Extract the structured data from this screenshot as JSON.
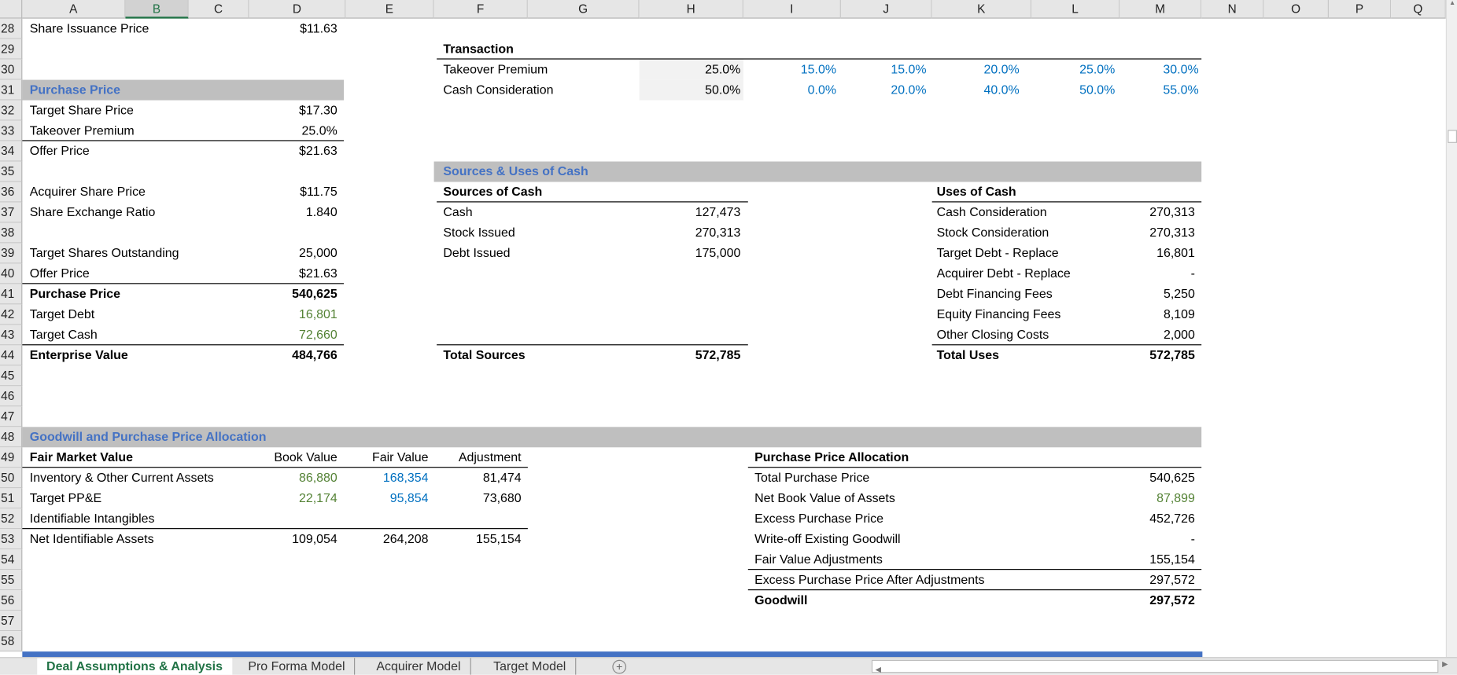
{
  "columns": [
    "A",
    "B",
    "C",
    "D",
    "E",
    "F",
    "G",
    "H",
    "I",
    "J",
    "K",
    "L",
    "M",
    "N",
    "O",
    "P",
    "Q"
  ],
  "selected_column": "B",
  "row_numbers": [
    28,
    29,
    30,
    31,
    32,
    33,
    34,
    35,
    36,
    37,
    38,
    39,
    40,
    41,
    42,
    43,
    44,
    45,
    46,
    47,
    48,
    49,
    50,
    51,
    52,
    53,
    54,
    55,
    56,
    57,
    58
  ],
  "left_block": {
    "rows": [
      {
        "row": 28,
        "label": "Share Issuance Price",
        "value": "$11.63",
        "style": ""
      },
      {
        "row": 31,
        "label": "Purchase Price",
        "value": "",
        "style": "header"
      },
      {
        "row": 32,
        "label": "Target Share Price",
        "value": "$17.30",
        "style": ""
      },
      {
        "row": 33,
        "label": "Takeover Premium",
        "value": "25.0%",
        "style": ""
      },
      {
        "row": 34,
        "label": "Offer Price",
        "value": "$21.63",
        "style": ""
      },
      {
        "row": 36,
        "label": "Acquirer Share Price",
        "value": "$11.75",
        "style": ""
      },
      {
        "row": 37,
        "label": "Share Exchange Ratio",
        "value": "1.840",
        "style": ""
      },
      {
        "row": 39,
        "label": "Target Shares Outstanding",
        "value": "25,000",
        "style": ""
      },
      {
        "row": 40,
        "label": "Offer Price",
        "value": "$21.63",
        "style": ""
      },
      {
        "row": 41,
        "label": "Purchase Price",
        "value": "540,625",
        "style": "bold"
      },
      {
        "row": 42,
        "label": "Target Debt",
        "value": "16,801",
        "style": "green"
      },
      {
        "row": 43,
        "label": "Target Cash",
        "value": "72,660",
        "style": "green"
      },
      {
        "row": 44,
        "label": "Enterprise Value",
        "value": "484,766",
        "style": "bold"
      }
    ]
  },
  "transaction": {
    "title": "Transaction",
    "rows": [
      {
        "row": 30,
        "label": "Takeover Premium",
        "base": "25.0%",
        "scenarios": [
          "15.0%",
          "15.0%",
          "20.0%",
          "25.0%",
          "30.0%"
        ]
      },
      {
        "row": 31,
        "label": "Cash Consideration",
        "base": "50.0%",
        "scenarios": [
          "0.0%",
          "20.0%",
          "40.0%",
          "50.0%",
          "55.0%"
        ]
      }
    ]
  },
  "sources_uses": {
    "title": "Sources & Uses of Cash",
    "sources_title": "Sources of Cash",
    "sources": [
      {
        "label": "Cash",
        "value": "127,473"
      },
      {
        "label": "Stock Issued",
        "value": "270,313"
      },
      {
        "label": "Debt Issued",
        "value": "175,000"
      }
    ],
    "total_sources": {
      "label": "Total Sources",
      "value": "572,785"
    },
    "uses_title": "Uses of Cash",
    "uses": [
      {
        "label": "Cash Consideration",
        "value": "270,313"
      },
      {
        "label": "Stock Consideration",
        "value": "270,313"
      },
      {
        "label": "Target Debt - Replace",
        "value": "16,801"
      },
      {
        "label": "Acquirer Debt - Replace",
        "value": "-"
      },
      {
        "label": "Debt Financing Fees",
        "value": "5,250"
      },
      {
        "label": "Equity Financing Fees",
        "value": "8,109"
      },
      {
        "label": "Other Closing Costs",
        "value": "2,000"
      }
    ],
    "total_uses": {
      "label": "Total Uses",
      "value": "572,785"
    }
  },
  "goodwill": {
    "title": "Goodwill and Purchase Price Allocation",
    "fmv_title": "Fair Market Value",
    "headers": [
      "Book Value",
      "Fair Value",
      "Adjustment"
    ],
    "rows": [
      {
        "label": "Inventory & Other Current Assets",
        "book": "86,880",
        "fair": "168,354",
        "adj": "81,474"
      },
      {
        "label": "Target PP&E",
        "book": "22,174",
        "fair": "95,854",
        "adj": "73,680"
      },
      {
        "label": "Identifiable Intangibles",
        "book": "",
        "fair": "",
        "adj": ""
      },
      {
        "label": "Net Identifiable Assets",
        "book": "109,054",
        "fair": "264,208",
        "adj": "155,154"
      }
    ],
    "ppa_title": "Purchase Price Allocation",
    "ppa": [
      {
        "label": "Total Purchase Price",
        "value": "540,625",
        "style": ""
      },
      {
        "label": "Net Book Value of Assets",
        "value": "87,899",
        "style": "green"
      },
      {
        "label": "Excess Purchase Price",
        "value": "452,726",
        "style": ""
      },
      {
        "label": "Write-off Existing Goodwill",
        "value": "-",
        "style": ""
      },
      {
        "label": "Fair Value Adjustments",
        "value": "155,154",
        "style": ""
      },
      {
        "label": "Excess Purchase Price After Adjustments",
        "value": "297,572",
        "style": ""
      },
      {
        "label": "Goodwill",
        "value": "297,572",
        "style": "bold"
      }
    ]
  },
  "sheet_tabs": [
    {
      "label": "Deal Assumptions & Analysis",
      "active": true
    },
    {
      "label": "Pro Forma Model",
      "active": false
    },
    {
      "label": "Acquirer Model",
      "active": false
    },
    {
      "label": "Target Model",
      "active": false
    }
  ],
  "add_sheet_icon": "plus-circle-icon",
  "colors": {
    "header_blue": "#4472C4",
    "input_blue": "#0070C0",
    "link_green": "#548235",
    "band_gray": "#BFBFBF",
    "excel_green": "#217346"
  }
}
